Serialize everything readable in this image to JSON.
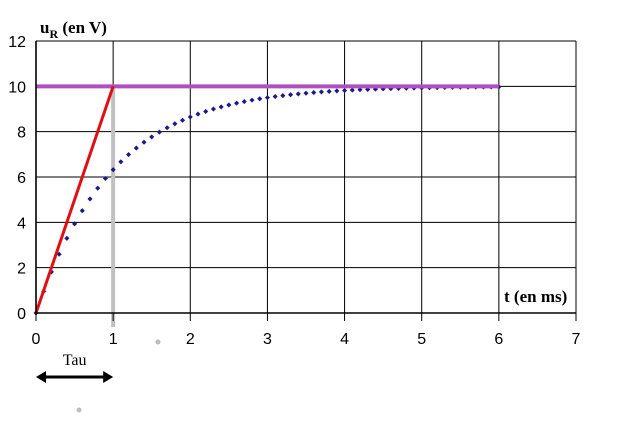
{
  "chart_data": {
    "type": "scatter",
    "title": "",
    "ylabel_main": "u",
    "ylabel_sub": "R",
    "ylabel_unit": " (en V)",
    "xlabel": "t (en ms)",
    "xlim": [
      0,
      7
    ],
    "ylim": [
      0,
      12
    ],
    "xticks": [
      0,
      1,
      2,
      3,
      4,
      5,
      6,
      7
    ],
    "yticks": [
      0,
      2,
      4,
      6,
      8,
      10,
      12
    ],
    "grid": true,
    "legend": "none",
    "tau_ms": 1,
    "E_volts": 10,
    "series": [
      {
        "kind": "dotted-curve",
        "formula": "10*(1-exp(-t/1))",
        "x_start": 0,
        "x_end": 6,
        "x_step": 0.1,
        "color": "#1a1a8c"
      },
      {
        "kind": "horizontal-line",
        "y": 10,
        "x_range": [
          0,
          6
        ],
        "color": "#b050c0"
      },
      {
        "kind": "tangent-line",
        "points": [
          [
            0,
            0
          ],
          [
            1,
            10
          ]
        ],
        "color": "#e01010"
      },
      {
        "kind": "vertical-guide",
        "x": 1,
        "y_range": [
          0,
          10
        ],
        "color": "#c0c0c0"
      }
    ],
    "annotations": {
      "tau_label": "Tau",
      "tau_span": [
        0,
        1
      ]
    },
    "colors": {
      "grid": "#000000",
      "axis": "#000000",
      "curve": "#1a1a8c",
      "asymptote": "#b050c0",
      "tangent": "#e01010",
      "guide": "#c0c0c0",
      "arrow": "#000000"
    }
  }
}
